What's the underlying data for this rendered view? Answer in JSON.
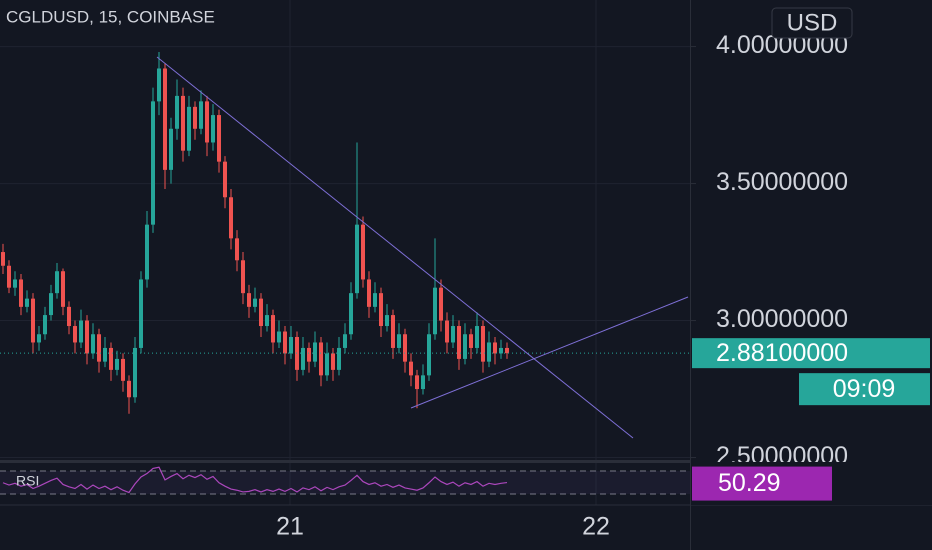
{
  "chart_data": {
    "type": "candlestick",
    "title": "CGLDUSD, 15, COINBASE",
    "currency": "USD",
    "up_color": "#26a69a",
    "down_color": "#ef5350",
    "ylim": [
      2.46,
      4.17
    ],
    "yticks": [
      {
        "value": 4,
        "label": "4.00000000"
      },
      {
        "value": 3.5,
        "label": "3.50000000"
      },
      {
        "value": 3,
        "label": "3.00000000"
      },
      {
        "value": 2.5,
        "label": "2.50000000"
      }
    ],
    "xticks": [
      "21",
      "22"
    ],
    "grid": true,
    "last_price_label": "2.88100000",
    "countdown": "09:09",
    "candles": [
      [
        3.25,
        3.28,
        3.17,
        3.2
      ],
      [
        3.2,
        3.22,
        3.1,
        3.12
      ],
      [
        3.12,
        3.18,
        3.09,
        3.15
      ],
      [
        3.15,
        3.17,
        3.02,
        3.05
      ],
      [
        3.05,
        3.11,
        3.03,
        3.08
      ],
      [
        3.08,
        3.1,
        2.88,
        2.92
      ],
      [
        2.92,
        2.98,
        2.89,
        2.95
      ],
      [
        2.95,
        3.05,
        2.93,
        3.02
      ],
      [
        3.02,
        3.13,
        3.0,
        3.1
      ],
      [
        3.1,
        3.21,
        3.08,
        3.18
      ],
      [
        3.18,
        3.19,
        3.02,
        3.05
      ],
      [
        3.05,
        3.07,
        2.95,
        2.98
      ],
      [
        2.98,
        3.0,
        2.88,
        2.92
      ],
      [
        2.92,
        3.04,
        2.9,
        3.0
      ],
      [
        3.0,
        3.02,
        2.84,
        2.88
      ],
      [
        2.88,
        2.99,
        2.86,
        2.95
      ],
      [
        2.95,
        2.97,
        2.81,
        2.85
      ],
      [
        2.85,
        2.94,
        2.83,
        2.9
      ],
      [
        2.9,
        2.92,
        2.78,
        2.82
      ],
      [
        2.82,
        2.89,
        2.8,
        2.86
      ],
      [
        2.86,
        2.88,
        2.74,
        2.78
      ],
      [
        2.78,
        2.8,
        2.66,
        2.72
      ],
      [
        2.72,
        2.94,
        2.7,
        2.9
      ],
      [
        2.9,
        3.18,
        2.88,
        3.15
      ],
      [
        3.15,
        3.4,
        3.12,
        3.35
      ],
      [
        3.35,
        3.85,
        3.32,
        3.8
      ],
      [
        3.8,
        3.98,
        3.75,
        3.92
      ],
      [
        3.92,
        3.94,
        3.48,
        3.55
      ],
      [
        3.55,
        3.74,
        3.5,
        3.7
      ],
      [
        3.7,
        3.88,
        3.66,
        3.82
      ],
      [
        3.82,
        3.85,
        3.58,
        3.62
      ],
      [
        3.62,
        3.82,
        3.6,
        3.78
      ],
      [
        3.78,
        3.8,
        3.66,
        3.7
      ],
      [
        3.7,
        3.84,
        3.68,
        3.8
      ],
      [
        3.8,
        3.82,
        3.6,
        3.65
      ],
      [
        3.65,
        3.79,
        3.62,
        3.75
      ],
      [
        3.75,
        3.77,
        3.54,
        3.58
      ],
      [
        3.58,
        3.6,
        3.41,
        3.45
      ],
      [
        3.45,
        3.48,
        3.26,
        3.3
      ],
      [
        3.3,
        3.33,
        3.18,
        3.22
      ],
      [
        3.22,
        3.25,
        3.06,
        3.1
      ],
      [
        3.1,
        3.13,
        3.01,
        3.05
      ],
      [
        3.05,
        3.12,
        3.03,
        3.08
      ],
      [
        3.08,
        3.1,
        2.94,
        2.98
      ],
      [
        2.98,
        3.06,
        2.96,
        3.02
      ],
      [
        3.02,
        3.04,
        2.88,
        2.92
      ],
      [
        2.92,
        3.0,
        2.9,
        2.96
      ],
      [
        2.96,
        2.98,
        2.84,
        2.88
      ],
      [
        2.88,
        2.98,
        2.86,
        2.94
      ],
      [
        2.94,
        2.96,
        2.78,
        2.82
      ],
      [
        2.82,
        2.94,
        2.8,
        2.9
      ],
      [
        2.9,
        2.92,
        2.81,
        2.85
      ],
      [
        2.85,
        2.96,
        2.83,
        2.92
      ],
      [
        2.92,
        2.94,
        2.76,
        2.8
      ],
      [
        2.8,
        2.92,
        2.78,
        2.88
      ],
      [
        2.88,
        2.9,
        2.78,
        2.82
      ],
      [
        2.82,
        2.94,
        2.8,
        2.9
      ],
      [
        2.9,
        2.99,
        2.88,
        2.95
      ],
      [
        2.95,
        3.14,
        2.93,
        3.1
      ],
      [
        3.1,
        3.65,
        3.08,
        3.35
      ],
      [
        3.35,
        3.38,
        3.12,
        3.15
      ],
      [
        3.15,
        3.18,
        3.01,
        3.05
      ],
      [
        3.05,
        3.14,
        3.03,
        3.1
      ],
      [
        3.1,
        3.12,
        2.94,
        2.98
      ],
      [
        2.98,
        3.06,
        2.96,
        3.02
      ],
      [
        3.02,
        3.04,
        2.86,
        2.9
      ],
      [
        2.9,
        2.99,
        2.88,
        2.95
      ],
      [
        2.95,
        2.97,
        2.81,
        2.85
      ],
      [
        2.85,
        2.88,
        2.76,
        2.8
      ],
      [
        2.8,
        2.82,
        2.68,
        2.75
      ],
      [
        2.75,
        2.84,
        2.73,
        2.8
      ],
      [
        2.8,
        2.99,
        2.78,
        2.95
      ],
      [
        2.95,
        3.3,
        2.93,
        3.12
      ],
      [
        3.12,
        3.15,
        2.96,
        3.0
      ],
      [
        3.0,
        3.03,
        2.88,
        2.92
      ],
      [
        2.92,
        3.02,
        2.9,
        2.98
      ],
      [
        2.98,
        3.0,
        2.82,
        2.86
      ],
      [
        2.86,
        2.99,
        2.84,
        2.95
      ],
      [
        2.95,
        2.97,
        2.86,
        2.9
      ],
      [
        2.9,
        3.03,
        2.88,
        2.98
      ],
      [
        2.98,
        3.0,
        2.81,
        2.85
      ],
      [
        2.85,
        2.96,
        2.83,
        2.92
      ],
      [
        2.92,
        2.94,
        2.84,
        2.88
      ],
      [
        2.88,
        2.93,
        2.86,
        2.9
      ],
      [
        2.9,
        2.92,
        2.86,
        2.881
      ]
    ],
    "rsi": {
      "name": "RSI",
      "color": "#ab47bc",
      "ylim": [
        0,
        100
      ],
      "value_label": "50.29",
      "values": [
        50,
        46,
        49,
        44,
        47,
        40,
        44,
        49,
        54,
        58,
        47,
        43,
        40,
        47,
        39,
        46,
        40,
        44,
        38,
        43,
        37,
        33,
        48,
        60,
        66,
        75,
        77,
        55,
        61,
        66,
        57,
        63,
        59,
        64,
        56,
        61,
        50,
        44,
        39,
        37,
        34,
        35,
        38,
        34,
        38,
        35,
        39,
        35,
        40,
        34,
        41,
        38,
        43,
        36,
        42,
        38,
        43,
        46,
        54,
        63,
        52,
        47,
        50,
        44,
        47,
        42,
        46,
        41,
        39,
        37,
        41,
        50,
        60,
        52,
        47,
        51,
        44,
        50,
        47,
        52,
        44,
        49,
        47,
        49,
        50.29
      ]
    }
  }
}
